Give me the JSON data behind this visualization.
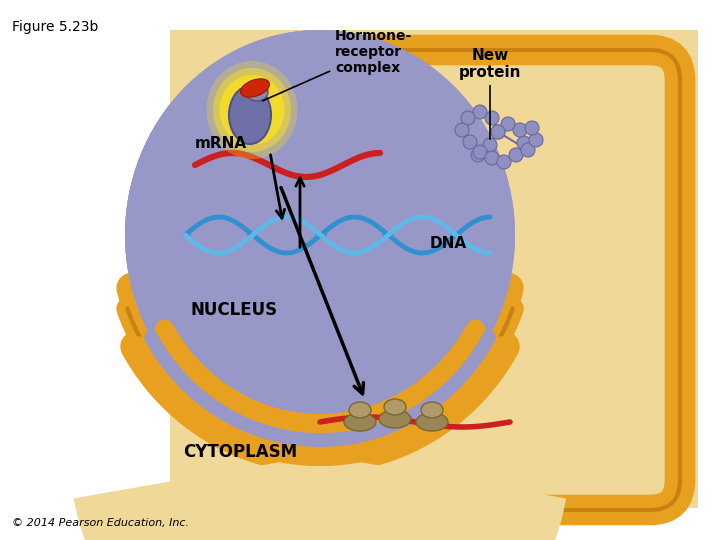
{
  "title": "Figure 5.23b",
  "copyright": "© 2014 Pearson Education, Inc.",
  "bg_outer": "#ffffff",
  "bg_tan": "#f0d898",
  "nucleus_color": "#9898c8",
  "nucleus_edge": "#7878a8",
  "membrane_orange": "#e8a020",
  "membrane_dark": "#c88010",
  "dna_color1": "#3090d0",
  "dna_color2": "#60b8e8",
  "mrna_color": "#cc2020",
  "receptor_color": "#7878b0",
  "hormone_color": "#cc3010",
  "glow_color": "#f8e020",
  "ribosome_color": "#a09060",
  "protein_bead_color": "#9090c0",
  "labels": {
    "title": "Figure 5.23b",
    "hormone_receptor": "Hormone-\nreceptor\ncomplex",
    "dna": "DNA",
    "mrna": "mRNA",
    "nucleus": "NUCLEUS",
    "cytoplasm": "CYTOPLASM",
    "new_protein": "New\nprotein"
  }
}
